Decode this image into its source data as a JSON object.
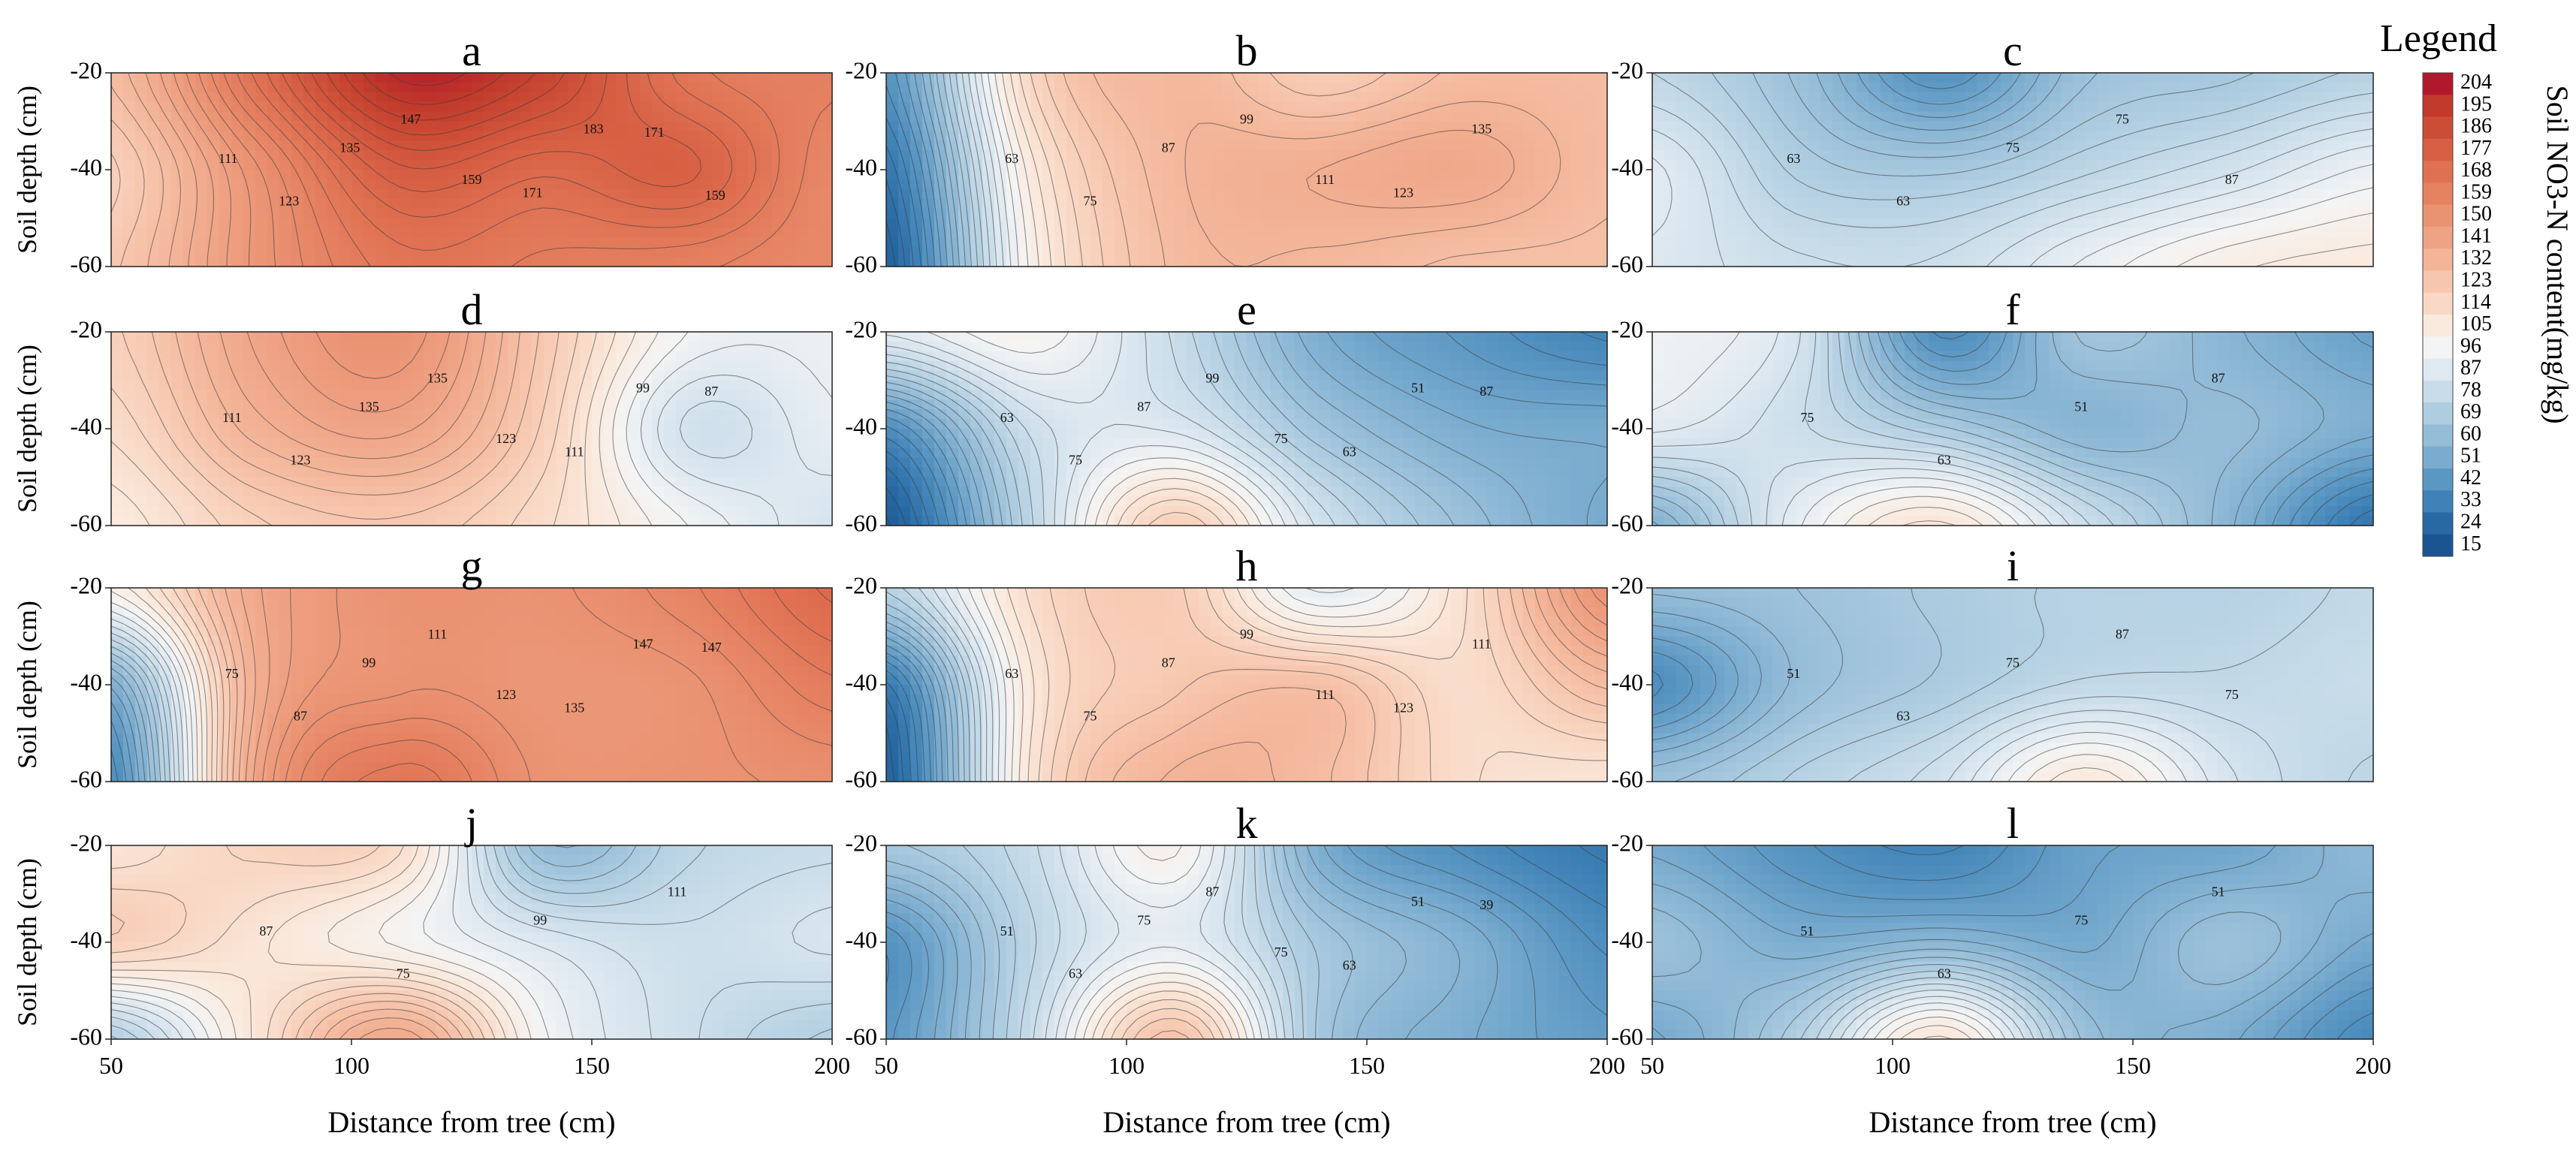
{
  "chart_data": {
    "type": "heatmap",
    "description_units": "Soil NO3-N content (mg/kg)",
    "shared": {
      "xlabel": "Distance from tree (cm)",
      "ylabel": "Soil depth (cm)",
      "xlim": [
        50,
        200
      ],
      "ylim": [
        -60,
        -20
      ],
      "x_ticks": [
        "50",
        "100",
        "150",
        "200"
      ],
      "y_ticks": [
        "-20",
        "-40",
        "-60"
      ]
    },
    "legend": {
      "title": "Legend",
      "label": "Soil NO3-N content(mg/kg)",
      "values": [
        204,
        195,
        186,
        177,
        168,
        159,
        150,
        141,
        132,
        123,
        114,
        105,
        96,
        87,
        78,
        69,
        60,
        51,
        42,
        33,
        24,
        15
      ],
      "colors": [
        "#b2182b",
        "#c0392b",
        "#cc4d36",
        "#d75f43",
        "#df7152",
        "#e58262",
        "#ea9373",
        "#efa385",
        "#f3b498",
        "#f7c6ae",
        "#f9d9c6",
        "#faeade",
        "#f4f4f4",
        "#dfe9f1",
        "#c8dce9",
        "#afcde1",
        "#96bdd8",
        "#7aaccf",
        "#5b97c3",
        "#3f82b7",
        "#2869a3",
        "#1a5591"
      ]
    },
    "panels": [
      {
        "letter": "a",
        "grid": [
          [
            128,
            168,
            200,
            190,
            165,
            160
          ],
          [
            118,
            150,
            178,
            172,
            176,
            156
          ],
          [
            122,
            148,
            165,
            162,
            160,
            155
          ]
        ],
        "contour_labels": [
          "111",
          "123",
          "135",
          "147",
          "159",
          "171",
          "183",
          "171",
          "159"
        ]
      },
      {
        "letter": "b",
        "grid": [
          [
            40,
            115,
            130,
            120,
            128,
            128
          ],
          [
            28,
            105,
            130,
            135,
            138,
            128
          ],
          [
            20,
            100,
            128,
            130,
            126,
            126
          ]
        ],
        "contour_labels": [
          "63",
          "75",
          "87",
          "99",
          "111",
          "123",
          "135"
        ]
      },
      {
        "letter": "c",
        "grid": [
          [
            75,
            62,
            40,
            62,
            66,
            72
          ],
          [
            88,
            70,
            66,
            74,
            82,
            92
          ],
          [
            86,
            80,
            80,
            92,
            102,
            105
          ]
        ],
        "contour_labels": [
          "63",
          "63",
          "75",
          "75",
          "87"
        ]
      },
      {
        "letter": "d",
        "grid": [
          [
            118,
            140,
            150,
            122,
            95,
            92
          ],
          [
            112,
            133,
            140,
            118,
            82,
            90
          ],
          [
            104,
            118,
            122,
            112,
            95,
            84
          ]
        ],
        "contour_labels": [
          "111",
          "123",
          "135",
          "135",
          "123",
          "111",
          "99",
          "87"
        ]
      },
      {
        "letter": "e",
        "grid": [
          [
            88,
            98,
            78,
            52,
            42,
            34
          ],
          [
            38,
            80,
            86,
            64,
            52,
            50
          ],
          [
            18,
            74,
            118,
            82,
            62,
            50
          ]
        ],
        "contour_labels": [
          "63",
          "75",
          "87",
          "99",
          "75",
          "63",
          "51",
          "87"
        ]
      },
      {
        "letter": "f",
        "grid": [
          [
            94,
            84,
            38,
            64,
            56,
            46
          ],
          [
            88,
            80,
            68,
            56,
            60,
            52
          ],
          [
            54,
            90,
            108,
            80,
            56,
            28
          ]
        ],
        "contour_labels": [
          "75",
          "63",
          "51",
          "87"
        ]
      },
      {
        "letter": "g",
        "grid": [
          [
            100,
            138,
            150,
            150,
            158,
            172
          ],
          [
            52,
            135,
            150,
            148,
            150,
            162
          ],
          [
            36,
            140,
            165,
            150,
            150,
            152
          ]
        ],
        "contour_labels": [
          "75",
          "87",
          "99",
          "111",
          "123",
          "135",
          "147",
          "147"
        ]
      },
      {
        "letter": "h",
        "grid": [
          [
            72,
            112,
            120,
            90,
            110,
            150
          ],
          [
            30,
            106,
            122,
            126,
            112,
            128
          ],
          [
            20,
            108,
            132,
            128,
            112,
            108
          ]
        ],
        "contour_labels": [
          "63",
          "75",
          "87",
          "99",
          "111",
          "123",
          "111"
        ]
      },
      {
        "letter": "i",
        "grid": [
          [
            60,
            63,
            68,
            72,
            72,
            76
          ],
          [
            38,
            60,
            68,
            76,
            76,
            78
          ],
          [
            62,
            72,
            82,
            106,
            84,
            74
          ]
        ],
        "contour_labels": [
          "51",
          "63",
          "75",
          "87",
          "75"
        ]
      },
      {
        "letter": "j",
        "grid": [
          [
            108,
            116,
            112,
            60,
            74,
            78
          ],
          [
            118,
            108,
            98,
            86,
            80,
            84
          ],
          [
            70,
            108,
            138,
            96,
            80,
            70
          ]
        ],
        "contour_labels": [
          "87",
          "75",
          "99",
          "111"
        ]
      },
      {
        "letter": "k",
        "grid": [
          [
            66,
            78,
            100,
            52,
            38,
            30
          ],
          [
            40,
            74,
            90,
            66,
            54,
            38
          ],
          [
            42,
            78,
            125,
            66,
            52,
            44
          ]
        ],
        "contour_labels": [
          "51",
          "63",
          "75",
          "87",
          "75",
          "63",
          "51",
          "39"
        ]
      },
      {
        "letter": "l",
        "grid": [
          [
            50,
            40,
            34,
            46,
            48,
            58
          ],
          [
            62,
            52,
            56,
            50,
            62,
            50
          ],
          [
            50,
            70,
            108,
            62,
            52,
            36
          ]
        ],
        "contour_labels": [
          "51",
          "63",
          "75",
          "51"
        ]
      }
    ]
  }
}
